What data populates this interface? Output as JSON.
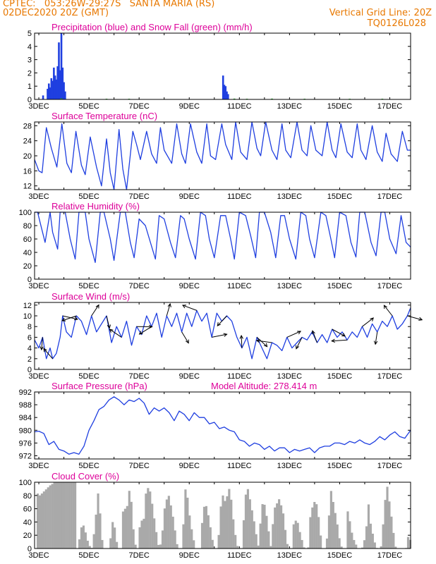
{
  "header": {
    "line1": "CPTEC:   053:26W-29:27S   SANTA MARIA (RS)",
    "line2": "02DEC2020 20Z (GMT)",
    "grid_note": "Vertical Grid Line: 20Z",
    "code": "TQ0126L028"
  },
  "colors": {
    "header": "#e87800",
    "title": "#dd0099",
    "series": "#1f3fe0",
    "snow": "#22aa22",
    "cloud": "#a9a9a9",
    "grid": "#e07000"
  },
  "chart_data": [
    {
      "type": "bar",
      "title": "Precipitation (blue) and Snow Fall (green) (mm/h)",
      "xlabels": [
        "3DEC",
        "5DEC",
        "7DEC",
        "9DEC",
        "11DEC",
        "13DEC",
        "15DEC",
        "17DEC"
      ],
      "xlim": [
        2.83,
        17.83
      ],
      "ylim": [
        0,
        5
      ],
      "yticks": [
        0,
        1,
        2,
        3,
        4,
        5
      ],
      "series": [
        {
          "color": "blue",
          "points": [
            [
              3.17,
              0.3
            ],
            [
              3.35,
              0.8
            ],
            [
              3.4,
              1.2
            ],
            [
              3.45,
              0.9
            ],
            [
              3.5,
              1.6
            ],
            [
              3.55,
              1.4
            ],
            [
              3.6,
              2.4
            ],
            [
              3.65,
              1.8
            ],
            [
              3.7,
              1.5
            ],
            [
              3.75,
              2.5
            ],
            [
              3.8,
              4.3
            ],
            [
              3.85,
              2.2
            ],
            [
              3.9,
              5.0
            ],
            [
              3.95,
              2.4
            ],
            [
              4.0,
              1.3
            ],
            [
              4.05,
              0.6
            ],
            [
              10.35,
              1.8
            ],
            [
              10.4,
              1.1
            ],
            [
              10.45,
              1.0
            ],
            [
              10.5,
              0.6
            ],
            [
              10.55,
              0.4
            ]
          ]
        },
        {
          "color": "green",
          "points": [
            [
              3.9,
              0.08
            ],
            [
              5.7,
              0.05
            ],
            [
              6.6,
              0.05
            ],
            [
              10.8,
              0.06
            ],
            [
              11.3,
              0.05
            ],
            [
              12.3,
              0.06
            ],
            [
              13.6,
              0.05
            ],
            [
              15.4,
              0.05
            ],
            [
              16.7,
              0.05
            ]
          ]
        }
      ]
    },
    {
      "type": "line",
      "title": "Surface Temperature (nC)",
      "xlabels": [
        "3DEC",
        "5DEC",
        "7DEC",
        "9DEC",
        "11DEC",
        "13DEC",
        "15DEC",
        "17DEC"
      ],
      "xlim": [
        2.83,
        17.83
      ],
      "ylim": [
        11,
        29
      ],
      "yticks": [
        12,
        16,
        20,
        24,
        28
      ],
      "x": [
        2.83,
        3.0,
        3.13,
        3.3,
        3.5,
        3.72,
        3.92,
        4.12,
        4.3,
        4.48,
        4.7,
        4.85,
        5.05,
        5.3,
        5.5,
        5.7,
        5.85,
        6.0,
        6.2,
        6.35,
        6.5,
        6.75,
        6.9,
        7.05,
        7.3,
        7.5,
        7.7,
        7.85,
        8.0,
        8.3,
        8.5,
        8.7,
        8.85,
        9.05,
        9.3,
        9.5,
        9.7,
        9.85,
        10.05,
        10.3,
        10.45,
        10.7,
        10.85,
        11.05,
        11.3,
        11.5,
        11.7,
        11.85,
        12.05,
        12.3,
        12.5,
        12.7,
        12.85,
        13.05,
        13.3,
        13.5,
        13.7,
        13.85,
        14.05,
        14.3,
        14.5,
        14.7,
        14.85,
        15.05,
        15.3,
        15.5,
        15.7,
        15.85,
        16.05,
        16.3,
        16.5,
        16.7,
        16.85,
        17.05,
        17.3,
        17.5,
        17.7,
        17.83
      ],
      "y": [
        19,
        16,
        15.5,
        27.5,
        22,
        17,
        28.5,
        18,
        15.5,
        26.5,
        17.5,
        15,
        25,
        17,
        12,
        24.5,
        15.5,
        11,
        27,
        16.5,
        11,
        26.5,
        23,
        19,
        26.5,
        20.5,
        18,
        27.5,
        21.5,
        18,
        28.5,
        20.5,
        18,
        28.5,
        21,
        18,
        28.5,
        20,
        19,
        28.5,
        23,
        19,
        29,
        21,
        19,
        29,
        22,
        20,
        29,
        21.5,
        19,
        28.5,
        21.5,
        19.5,
        29,
        21.5,
        20,
        28,
        21.5,
        20,
        29,
        21.5,
        19.5,
        28.5,
        21,
        19.5,
        28.5,
        21.5,
        19,
        28,
        21,
        18.5,
        26,
        20.5,
        18.5,
        26.5,
        21.5,
        21.5
      ]
    },
    {
      "type": "line",
      "title": "Relative Humidity (%)",
      "xlabels": [
        "3DEC",
        "5DEC",
        "7DEC",
        "9DEC",
        "11DEC",
        "13DEC",
        "15DEC",
        "17DEC"
      ],
      "xlim": [
        2.83,
        17.83
      ],
      "ylim": [
        0,
        100
      ],
      "yticks": [
        0,
        20,
        40,
        60,
        80,
        100
      ],
      "x": [
        2.83,
        2.95,
        3.05,
        3.25,
        3.45,
        3.55,
        3.75,
        3.85,
        4.05,
        4.25,
        4.45,
        4.6,
        4.85,
        5.0,
        5.25,
        5.45,
        5.6,
        5.85,
        6.0,
        6.25,
        6.45,
        6.65,
        6.8,
        7.0,
        7.25,
        7.45,
        7.65,
        7.8,
        8.0,
        8.25,
        8.45,
        8.65,
        8.8,
        9.0,
        9.25,
        9.45,
        9.65,
        9.8,
        10.0,
        10.25,
        10.45,
        10.65,
        10.8,
        11.0,
        11.25,
        11.45,
        11.65,
        11.8,
        12.0,
        12.25,
        12.45,
        12.65,
        12.8,
        13.0,
        13.25,
        13.45,
        13.65,
        13.8,
        14.0,
        14.25,
        14.45,
        14.65,
        14.8,
        15.0,
        15.25,
        15.45,
        15.65,
        15.8,
        16.0,
        16.25,
        16.45,
        16.65,
        16.8,
        17.0,
        17.25,
        17.45,
        17.65,
        17.83
      ],
      "y": [
        100,
        100,
        85,
        55,
        100,
        70,
        45,
        100,
        100,
        60,
        30,
        100,
        100,
        60,
        25,
        100,
        100,
        60,
        28,
        100,
        100,
        55,
        32,
        90,
        80,
        55,
        30,
        95,
        90,
        55,
        32,
        95,
        90,
        60,
        30,
        100,
        95,
        60,
        32,
        95,
        95,
        60,
        30,
        100,
        95,
        65,
        32,
        100,
        100,
        70,
        32,
        95,
        95,
        60,
        30,
        100,
        95,
        60,
        32,
        100,
        95,
        60,
        32,
        100,
        95,
        55,
        33,
        100,
        100,
        55,
        35,
        100,
        100,
        60,
        38,
        95,
        55,
        48
      ]
    },
    {
      "type": "line",
      "title": "Surface Wind (m/s)",
      "xlabels": [
        "3DEC",
        "5DEC",
        "7DEC",
        "9DEC",
        "11DEC",
        "13DEC",
        "15DEC",
        "17DEC"
      ],
      "xlim": [
        2.83,
        17.83
      ],
      "ylim": [
        0,
        12.5
      ],
      "yticks": [
        0,
        2,
        4,
        6,
        8,
        10,
        12
      ],
      "x": [
        2.83,
        3.0,
        3.15,
        3.3,
        3.45,
        3.55,
        3.7,
        3.85,
        3.95,
        4.1,
        4.3,
        4.5,
        4.7,
        4.9,
        5.1,
        5.3,
        5.5,
        5.7,
        5.9,
        6.1,
        6.3,
        6.5,
        6.7,
        6.9,
        7.1,
        7.3,
        7.5,
        7.7,
        7.9,
        8.1,
        8.3,
        8.5,
        8.7,
        8.9,
        9.1,
        9.3,
        9.5,
        9.7,
        9.9,
        10.1,
        10.3,
        10.5,
        10.7,
        10.9,
        11.1,
        11.3,
        11.5,
        11.7,
        11.9,
        12.1,
        12.3,
        12.5,
        12.7,
        12.9,
        13.1,
        13.3,
        13.5,
        13.7,
        13.9,
        14.1,
        14.3,
        14.5,
        14.7,
        14.9,
        15.1,
        15.3,
        15.5,
        15.7,
        15.9,
        16.1,
        16.3,
        16.5,
        16.7,
        16.9,
        17.1,
        17.3,
        17.5,
        17.7,
        17.83
      ],
      "y": [
        5.5,
        4,
        6,
        2,
        4,
        2,
        3,
        6,
        10,
        7,
        6,
        10,
        9,
        6.5,
        10,
        7,
        8.5,
        10,
        5,
        8,
        6,
        9,
        4.5,
        8,
        6.5,
        10,
        8,
        10.5,
        6,
        10,
        8,
        10.5,
        7,
        10.5,
        8,
        11,
        9,
        10.5,
        6,
        10.5,
        9,
        10,
        9,
        6,
        4,
        6,
        2,
        6,
        4,
        2,
        5,
        4.5,
        3.5,
        6,
        4,
        5,
        6,
        5.5,
        7,
        5,
        6.5,
        5,
        7.5,
        6,
        7,
        5.5,
        7,
        6,
        8,
        6,
        8.5,
        7,
        9,
        8,
        10,
        7.5,
        8.5,
        10,
        11.5
      ]
    },
    {
      "type": "line",
      "title": "Surface Pressure (hPa)",
      "annotation": "Model Altitude: 278.414 m",
      "xlabels": [
        "3DEC",
        "5DEC",
        "7DEC",
        "9DEC",
        "11DEC",
        "13DEC",
        "15DEC",
        "17DEC"
      ],
      "xlim": [
        2.83,
        17.83
      ],
      "ylim": [
        971,
        992
      ],
      "yticks": [
        972,
        976,
        980,
        984,
        988,
        992
      ],
      "x": [
        2.83,
        3.0,
        3.2,
        3.4,
        3.6,
        3.8,
        4.0,
        4.2,
        4.4,
        4.6,
        4.8,
        5.0,
        5.2,
        5.4,
        5.6,
        5.8,
        6.0,
        6.2,
        6.4,
        6.6,
        6.8,
        7.0,
        7.2,
        7.4,
        7.6,
        7.8,
        8.0,
        8.2,
        8.4,
        8.6,
        8.8,
        9.0,
        9.2,
        9.4,
        9.6,
        9.8,
        10.0,
        10.2,
        10.4,
        10.6,
        10.8,
        11.0,
        11.2,
        11.4,
        11.6,
        11.8,
        12.0,
        12.2,
        12.4,
        12.6,
        12.8,
        13.0,
        13.2,
        13.4,
        13.6,
        13.8,
        14.0,
        14.2,
        14.4,
        14.6,
        14.8,
        15.0,
        15.2,
        15.4,
        15.6,
        15.8,
        16.0,
        16.2,
        16.4,
        16.6,
        16.8,
        17.0,
        17.2,
        17.4,
        17.6,
        17.83
      ],
      "y": [
        979.5,
        979.7,
        979,
        975.5,
        976.5,
        974,
        973.5,
        972.5,
        973,
        972.5,
        975,
        980,
        983,
        986.5,
        987.5,
        989.5,
        990.5,
        989.5,
        988,
        989.5,
        989,
        990,
        988.5,
        985,
        987,
        986,
        987,
        985.5,
        983,
        986,
        985,
        983,
        985.5,
        984,
        984,
        982,
        982.5,
        980.5,
        981,
        980,
        979.5,
        977,
        976.5,
        975,
        976,
        975.5,
        974,
        975,
        973.5,
        974.5,
        974.5,
        973,
        974,
        973.5,
        974,
        974.5,
        973,
        974.5,
        975,
        975,
        976,
        976,
        975.5,
        976.5,
        976,
        977,
        976,
        975.5,
        976.5,
        978,
        977,
        978.5,
        979.5,
        978,
        977.5,
        980
      ]
    },
    {
      "type": "bar",
      "title": "Cloud Cover (%)",
      "xlabels": [
        "3DEC",
        "5DEC",
        "7DEC",
        "9DEC",
        "11DEC",
        "13DEC",
        "15DEC",
        "17DEC"
      ],
      "xlim": [
        2.83,
        17.83
      ],
      "ylim": [
        0,
        100
      ],
      "yticks": [
        0,
        20,
        40,
        60,
        80,
        100
      ],
      "step": 0.083,
      "profile": [
        [
          2.83,
          0
        ],
        [
          2.85,
          85
        ],
        [
          3.0,
          80
        ],
        [
          3.4,
          95
        ],
        [
          3.6,
          100
        ],
        [
          4.45,
          100
        ],
        [
          4.46,
          0
        ],
        [
          4.55,
          0
        ],
        [
          4.6,
          30
        ],
        [
          4.75,
          35
        ],
        [
          4.95,
          5
        ],
        [
          5.1,
          0
        ],
        [
          5.2,
          40
        ],
        [
          5.25,
          55
        ],
        [
          5.3,
          90
        ],
        [
          5.4,
          55
        ],
        [
          5.45,
          20
        ],
        [
          5.55,
          0
        ],
        [
          5.75,
          0
        ],
        [
          5.8,
          10
        ],
        [
          5.9,
          40
        ],
        [
          6.0,
          30
        ],
        [
          6.1,
          0
        ],
        [
          6.25,
          0
        ],
        [
          6.3,
          55
        ],
        [
          6.5,
          65
        ],
        [
          6.55,
          90
        ],
        [
          6.7,
          60
        ],
        [
          6.75,
          10
        ],
        [
          6.9,
          0
        ],
        [
          7.0,
          40
        ],
        [
          7.15,
          45
        ],
        [
          7.2,
          80
        ],
        [
          7.35,
          95
        ],
        [
          7.45,
          75
        ],
        [
          7.6,
          35
        ],
        [
          7.75,
          0
        ],
        [
          7.85,
          10
        ],
        [
          8.0,
          70
        ],
        [
          8.15,
          80
        ],
        [
          8.3,
          50
        ],
        [
          8.4,
          25
        ],
        [
          8.5,
          0
        ],
        [
          8.65,
          0
        ],
        [
          8.75,
          50
        ],
        [
          8.8,
          90
        ],
        [
          8.9,
          75
        ],
        [
          9.0,
          40
        ],
        [
          9.1,
          20
        ],
        [
          9.2,
          0
        ],
        [
          9.4,
          0
        ],
        [
          9.5,
          55
        ],
        [
          9.6,
          70
        ],
        [
          9.75,
          45
        ],
        [
          9.85,
          20
        ],
        [
          9.95,
          0
        ],
        [
          10.1,
          0
        ],
        [
          10.2,
          60
        ],
        [
          10.3,
          80
        ],
        [
          10.4,
          70
        ],
        [
          10.55,
          90
        ],
        [
          10.65,
          70
        ],
        [
          10.75,
          30
        ],
        [
          10.9,
          0
        ],
        [
          11.05,
          0
        ],
        [
          11.2,
          80
        ],
        [
          11.3,
          90
        ],
        [
          11.45,
          60
        ],
        [
          11.6,
          30
        ],
        [
          11.7,
          0
        ],
        [
          11.8,
          40
        ],
        [
          11.9,
          75
        ],
        [
          12.0,
          60
        ],
        [
          12.1,
          35
        ],
        [
          12.2,
          0
        ],
        [
          12.35,
          60
        ],
        [
          12.55,
          75
        ],
        [
          12.7,
          55
        ],
        [
          12.8,
          25
        ],
        [
          12.9,
          0
        ],
        [
          13.05,
          0
        ],
        [
          13.1,
          35
        ],
        [
          13.25,
          45
        ],
        [
          13.4,
          20
        ],
        [
          13.55,
          0
        ],
        [
          13.7,
          0
        ],
        [
          13.8,
          55
        ],
        [
          14.0,
          75
        ],
        [
          14.15,
          40
        ],
        [
          14.25,
          0
        ],
        [
          14.4,
          0
        ],
        [
          14.5,
          30
        ],
        [
          14.6,
          90
        ],
        [
          14.7,
          70
        ],
        [
          14.85,
          40
        ],
        [
          14.95,
          15
        ],
        [
          15.05,
          0
        ],
        [
          15.2,
          0
        ],
        [
          15.25,
          50
        ],
        [
          15.3,
          60
        ],
        [
          15.4,
          30
        ],
        [
          15.55,
          10
        ],
        [
          15.7,
          0
        ],
        [
          15.85,
          0
        ],
        [
          16.0,
          20
        ],
        [
          16.1,
          70
        ],
        [
          16.2,
          35
        ],
        [
          16.35,
          10
        ],
        [
          16.45,
          0
        ],
        [
          16.6,
          0
        ],
        [
          16.7,
          40
        ],
        [
          16.8,
          85
        ],
        [
          16.85,
          95
        ],
        [
          17.0,
          55
        ],
        [
          17.1,
          25
        ],
        [
          17.2,
          0
        ],
        [
          17.6,
          0
        ],
        [
          17.7,
          20
        ],
        [
          17.8,
          10
        ],
        [
          17.83,
          0
        ]
      ]
    }
  ]
}
